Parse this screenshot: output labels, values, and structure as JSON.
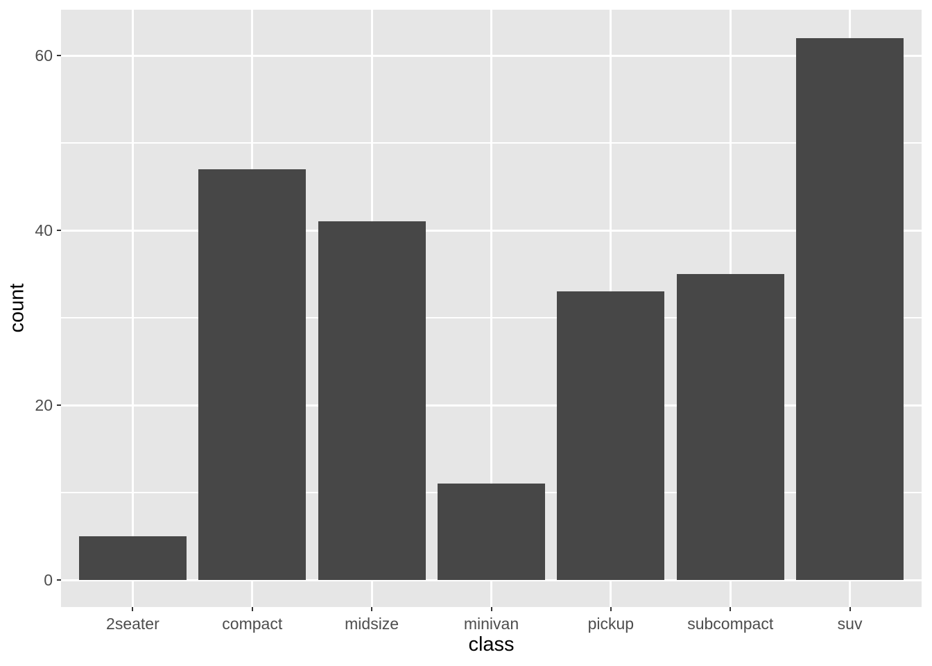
{
  "chart_data": {
    "type": "bar",
    "title": "",
    "categories": [
      "2seater",
      "compact",
      "midsize",
      "minivan",
      "pickup",
      "subcompact",
      "suv"
    ],
    "values": [
      5,
      47,
      41,
      11,
      33,
      35,
      62
    ],
    "xlabel": "class",
    "ylabel": "count",
    "yticks": [
      0,
      20,
      40,
      60
    ],
    "yticks_minor": [
      10,
      30,
      50
    ],
    "ylim": [
      0,
      62
    ],
    "grid": "on",
    "legend": "none",
    "colors": {
      "bar_fill": "#474747",
      "panel_background": "#E6E6E6",
      "grid_major": "#FFFFFF",
      "grid_minor": "#FFFFFF",
      "tick_label_text": "#4D4D4D",
      "axis_title_text": "#000000",
      "tick_mark": "#333333",
      "figure_background": "#FFFFFF"
    }
  }
}
